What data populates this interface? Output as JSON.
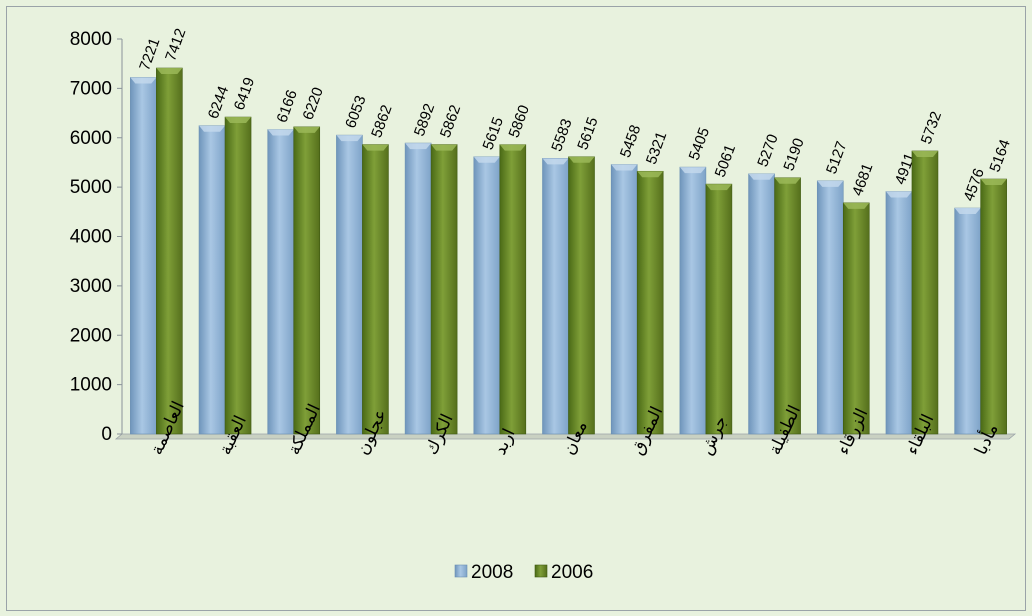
{
  "chart_data": {
    "type": "bar",
    "title": "",
    "xlabel": "",
    "ylabel": "",
    "ylim": [
      0,
      8000
    ],
    "yticks": [
      0,
      1000,
      2000,
      3000,
      4000,
      5000,
      6000,
      7000,
      8000
    ],
    "grid": false,
    "legend_position": "bottom",
    "categories": [
      "العاصمة",
      "العقبة",
      "المملكة",
      "عجلون",
      "الكرك",
      "اربد",
      "معان",
      "المفرق",
      "جرش",
      "الطفيلة",
      "الزرقاء",
      "البلقاء",
      "مأدبا"
    ],
    "series": [
      {
        "name": "2008",
        "color": "#8fb4d6",
        "values": [
          7221,
          6244,
          6166,
          6053,
          5892,
          5615,
          5583,
          5458,
          5405,
          5270,
          5127,
          4911,
          4576
        ]
      },
      {
        "name": "2006",
        "color": "#6b8a2a",
        "values": [
          7412,
          6419,
          6220,
          5862,
          5862,
          5860,
          5615,
          5321,
          5061,
          5190,
          4681,
          5732,
          5164
        ]
      }
    ]
  }
}
